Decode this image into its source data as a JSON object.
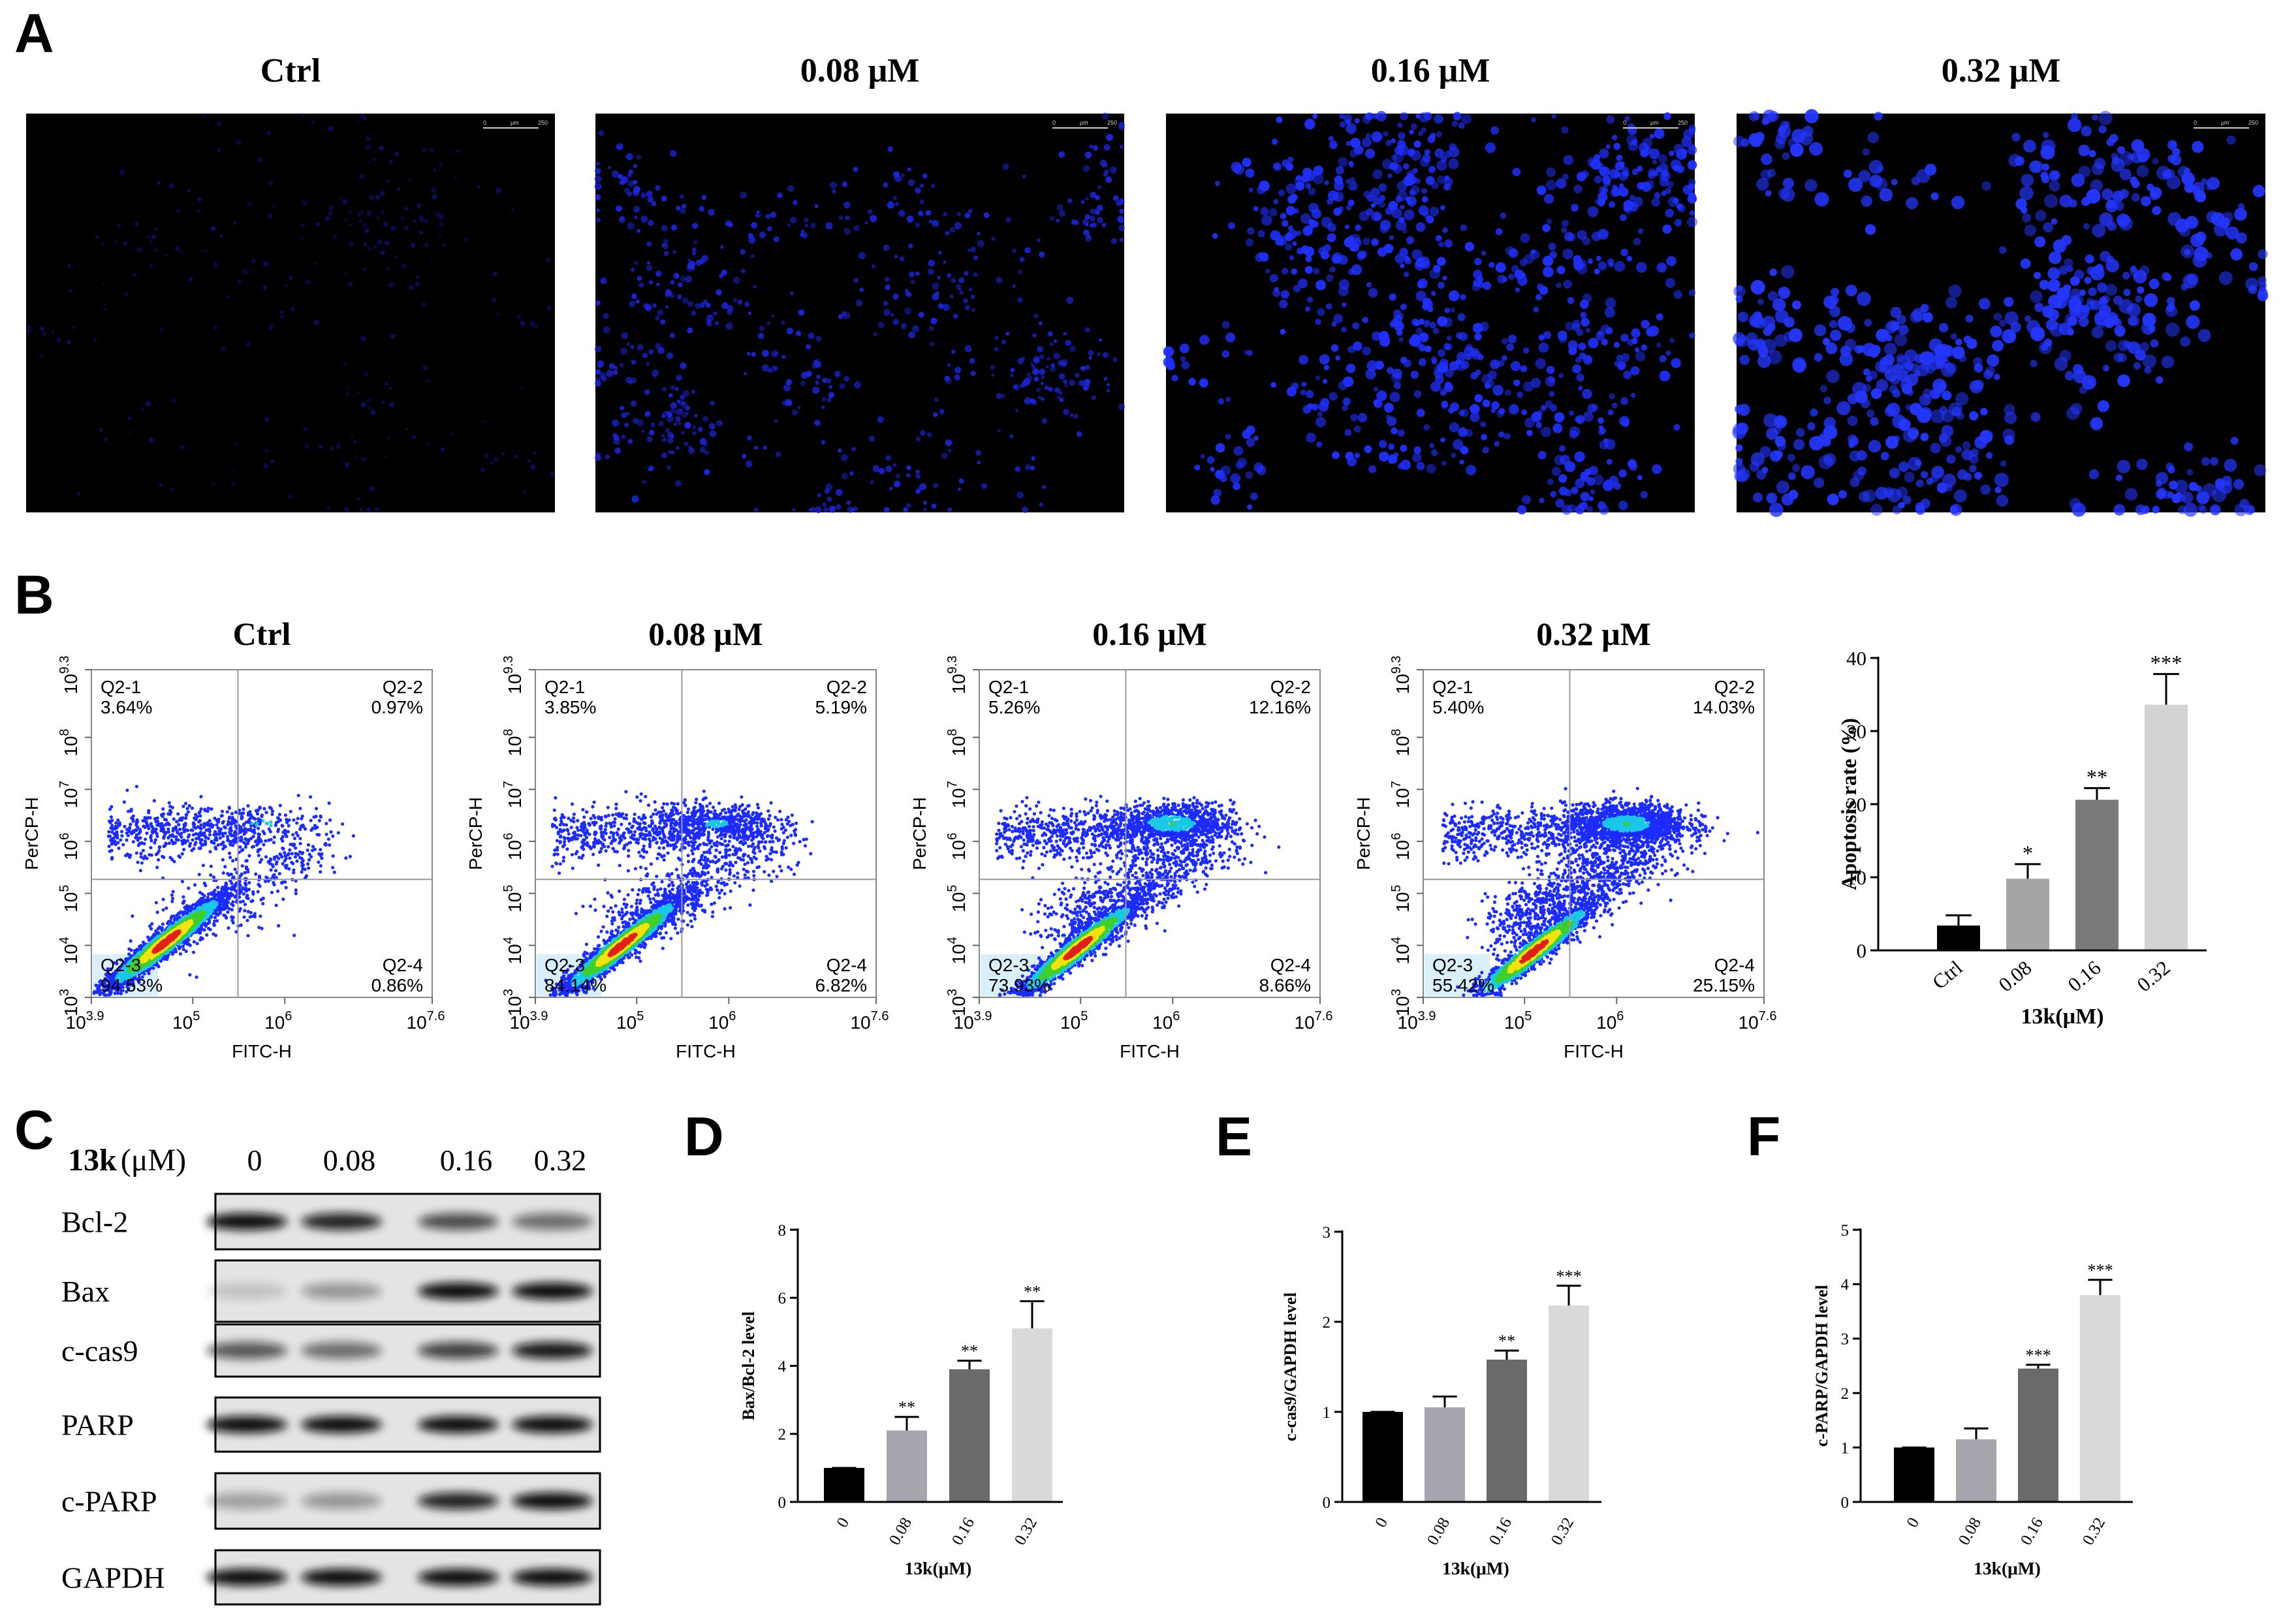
{
  "panel_labels": [
    "A",
    "B",
    "C",
    "D",
    "E",
    "F"
  ],
  "microscopy": {
    "titles": [
      "Ctrl",
      "0.08 μM",
      "0.16 μM",
      "0.32 μM"
    ],
    "scale_bar": [
      "0",
      "μm",
      "250"
    ]
  },
  "flow": {
    "titles": [
      "Ctrl",
      "0.08 μM",
      "0.16 μM",
      "0.32 μM"
    ],
    "x_label": "FITC-H",
    "y_label": "PerCP-H",
    "tick_base": "10",
    "xlim": [
      3.9,
      7.6
    ],
    "ylim": [
      3,
      9.3
    ],
    "xticks": [
      3.9,
      5,
      6,
      7.6
    ],
    "yticks": [
      3,
      4,
      5,
      6,
      7,
      8,
      9.3
    ],
    "panels": [
      {
        "quadrants": [
          {
            "name": "Q2-1",
            "value": 3.64,
            "label": "3.64%"
          },
          {
            "name": "Q2-2",
            "value": 0.97,
            "label": "0.97%"
          },
          {
            "name": "Q2-3",
            "value": 94.53,
            "label": "94.53%"
          },
          {
            "name": "Q2-4",
            "value": 0.86,
            "label": "0.86%"
          }
        ]
      },
      {
        "quadrants": [
          {
            "name": "Q2-1",
            "value": 3.85,
            "label": "3.85%"
          },
          {
            "name": "Q2-2",
            "value": 5.19,
            "label": "5.19%"
          },
          {
            "name": "Q2-3",
            "value": 84.14,
            "label": "84.14%"
          },
          {
            "name": "Q2-4",
            "value": 6.82,
            "label": "6.82%"
          }
        ]
      },
      {
        "quadrants": [
          {
            "name": "Q2-1",
            "value": 5.26,
            "label": "5.26%"
          },
          {
            "name": "Q2-2",
            "value": 12.16,
            "label": "12.16%"
          },
          {
            "name": "Q2-3",
            "value": 73.93,
            "label": "73.93%"
          },
          {
            "name": "Q2-4",
            "value": 8.66,
            "label": "8.66%"
          }
        ]
      },
      {
        "quadrants": [
          {
            "name": "Q2-1",
            "value": 5.4,
            "label": "5.40%"
          },
          {
            "name": "Q2-2",
            "value": 14.03,
            "label": "14.03%"
          },
          {
            "name": "Q2-3",
            "value": 55.42,
            "label": "55.42%"
          },
          {
            "name": "Q2-4",
            "value": 25.15,
            "label": "25.15%"
          }
        ]
      }
    ]
  },
  "western": {
    "compound": "13k",
    "unit": "(μM)",
    "lanes": [
      "0",
      "0.08",
      "0.16",
      "0.32"
    ],
    "proteins": [
      "Bcl-2",
      "Bax",
      "c-cas9",
      "PARP",
      "c-PARP",
      "GAPDH"
    ]
  },
  "chart_data": [
    {
      "type": "bar",
      "ylabel": "Apoptosis rate (%)",
      "xlabel": "13k(μM)",
      "categories": [
        "Ctrl",
        "0.08",
        "0.16",
        "0.32"
      ],
      "values": [
        3.4,
        9.8,
        20.6,
        33.6
      ],
      "errors": [
        1.4,
        2.0,
        1.6,
        4.2
      ],
      "significance": [
        null,
        "*",
        "**",
        "***"
      ],
      "colors": [
        "#000000",
        "#a5a5a5",
        "#7a7a7a",
        "#d3d3d3"
      ],
      "ylim": [
        0,
        40
      ],
      "yticks": [
        0,
        10,
        20,
        30,
        40
      ]
    },
    {
      "type": "bar",
      "ylabel": "Bax/Bcl-2 level",
      "xlabel": "13k(μM)",
      "categories": [
        "0",
        "0.08",
        "0.16",
        "0.32"
      ],
      "values": [
        1,
        2.1,
        3.9,
        5.1
      ],
      "errors": [
        0,
        0.4,
        0.25,
        0.8
      ],
      "significance": [
        null,
        "**",
        "**",
        "**"
      ],
      "colors": [
        "#000000",
        "#a6a4ad",
        "#6a6a6a",
        "#d9d9d9"
      ],
      "ylim": [
        0,
        8
      ],
      "yticks": [
        0,
        2,
        4,
        6,
        8
      ]
    },
    {
      "type": "bar",
      "ylabel": "c-cas9/GAPDH level",
      "xlabel": "13k(μM)",
      "categories": [
        "0",
        "0.08",
        "0.16",
        "0.32"
      ],
      "values": [
        1,
        1.05,
        1.58,
        2.18
      ],
      "errors": [
        0,
        0.12,
        0.1,
        0.22
      ],
      "significance": [
        null,
        null,
        "**",
        "***"
      ],
      "colors": [
        "#000000",
        "#a6a4ad",
        "#6a6a6a",
        "#d9d9d9"
      ],
      "ylim": [
        0,
        3
      ],
      "yticks": [
        0,
        1,
        2,
        3
      ]
    },
    {
      "type": "bar",
      "ylabel": "c-PARP/GAPDH level",
      "xlabel": "13k(μM)",
      "categories": [
        "0",
        "0.08",
        "0.16",
        "0.32"
      ],
      "values": [
        1,
        1.15,
        2.45,
        3.8
      ],
      "errors": [
        0,
        0.2,
        0.07,
        0.28
      ],
      "significance": [
        null,
        null,
        "***",
        "***"
      ],
      "colors": [
        "#000000",
        "#a6a4ad",
        "#6a6a6a",
        "#d9d9d9"
      ],
      "ylim": [
        0,
        5
      ],
      "yticks": [
        0,
        1,
        2,
        3,
        4,
        5
      ]
    }
  ]
}
